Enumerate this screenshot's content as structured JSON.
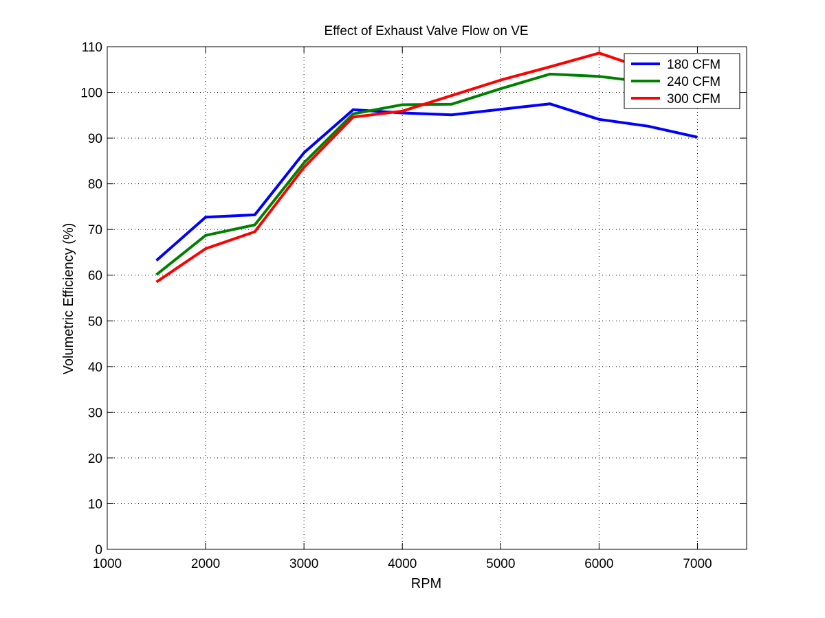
{
  "chart_data": {
    "type": "line",
    "title": "Effect of Exhaust Valve Flow on VE",
    "xlabel": "RPM",
    "ylabel": "Volumetric Efficiency (%)",
    "xlim": [
      1000,
      7500
    ],
    "ylim": [
      0,
      110
    ],
    "xticks": [
      1000,
      2000,
      3000,
      4000,
      5000,
      6000,
      7000
    ],
    "yticks": [
      0,
      10,
      20,
      30,
      40,
      50,
      60,
      70,
      80,
      90,
      100,
      110
    ],
    "grid": true,
    "legend_position": "top-right",
    "x": [
      1500,
      2000,
      2500,
      3000,
      3500,
      4000,
      4500,
      5000,
      5500,
      6000,
      6500,
      7000
    ],
    "series": [
      {
        "name": "180 CFM",
        "color": "#0000ff",
        "values": [
          63.2,
          72.7,
          73.2,
          86.8,
          96.2,
          95.5,
          95.1,
          96.3,
          97.5,
          94.1,
          92.6,
          90.2
        ]
      },
      {
        "name": "240 CFM",
        "color": "#008000",
        "values": [
          60.1,
          68.7,
          71.0,
          84.6,
          95.3,
          97.3,
          97.4,
          100.8,
          104.0,
          103.5,
          102.2,
          103.3
        ]
      },
      {
        "name": "300 CFM",
        "color": "#ff0000",
        "values": [
          58.5,
          65.8,
          69.5,
          83.6,
          94.6,
          95.9,
          99.3,
          102.7,
          105.6,
          108.6,
          105.0,
          101.5
        ]
      }
    ]
  }
}
